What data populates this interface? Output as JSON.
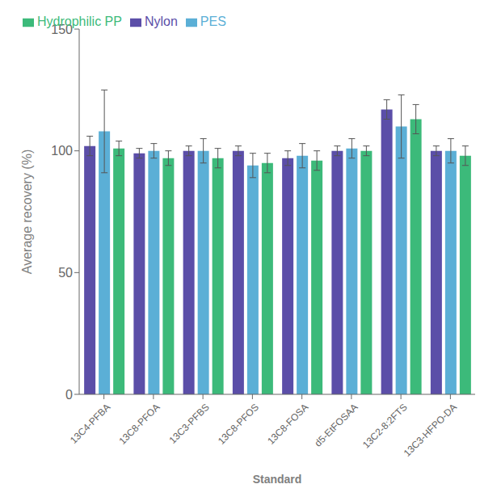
{
  "chart_data": {
    "type": "bar",
    "xlabel": "Standard",
    "ylabel": "Average recovery (%)",
    "categories": [
      "13C4-PFBA",
      "13C8-PFOA",
      "13C3-PFBS",
      "13C8-PFOS",
      "13C8-FOSA",
      "d5-EtFOSAA",
      "13C2-8:2FTS",
      "13C3-HFPO-DA"
    ],
    "series": [
      {
        "name": "Nylon",
        "color": "#5b4ea8",
        "values": [
          102,
          99,
          100,
          100,
          97,
          100,
          117,
          100
        ],
        "errors": [
          4,
          2,
          2,
          2,
          3,
          2,
          4,
          2
        ]
      },
      {
        "name": "PES",
        "color": "#5bafd6",
        "values": [
          108,
          100,
          100,
          94,
          98,
          101,
          110,
          100
        ],
        "errors": [
          17,
          3,
          5,
          5,
          5,
          4,
          13,
          5
        ]
      },
      {
        "name": "Hydrophilic PP",
        "color": "#3cba7a",
        "values": [
          101,
          97,
          97,
          95,
          96,
          100,
          113,
          98
        ],
        "errors": [
          3,
          3,
          4,
          4,
          4,
          2,
          6,
          4
        ]
      }
    ],
    "ylim": [
      0,
      150
    ],
    "yticks": [
      0,
      50,
      100,
      150
    ],
    "grid": false,
    "legend": "upper left"
  }
}
